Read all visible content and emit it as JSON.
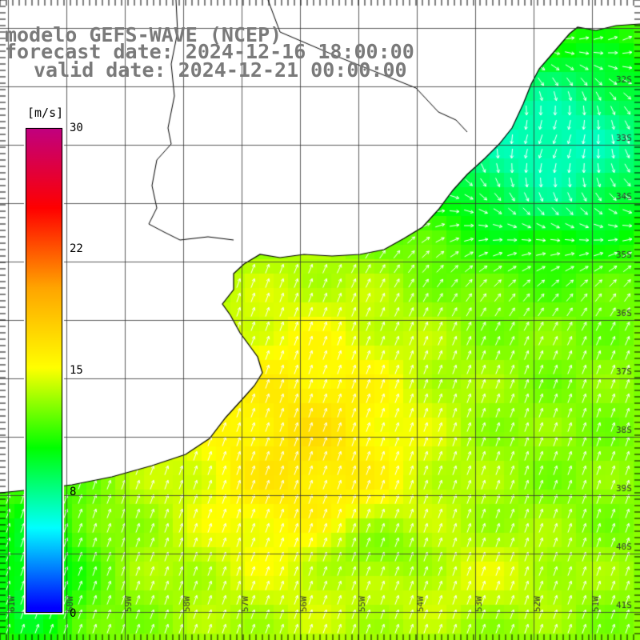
{
  "title": {
    "line1": "modelo GEFS-WAVE (NCEP)",
    "line2": "forecast date: 2024-12-16 18:00:00",
    "line3": "valid date: 2024-12-21 00:00:00"
  },
  "colorbar": {
    "unit": "[m/s]",
    "min": 0,
    "max": 30,
    "ticks": [
      "30",
      "22",
      "15",
      "8",
      "0"
    ],
    "colors": [
      "#0000ff",
      "#00ffff",
      "#00ff00",
      "#ffff00",
      "#ffa500",
      "#ff0000",
      "#c00080"
    ]
  },
  "map": {
    "lon_range": [
      -62,
      -51
    ],
    "lat_range": [
      -41.2,
      -31.2
    ],
    "lat_labels": [
      "32S",
      "33S",
      "34S",
      "35S",
      "36S",
      "37S",
      "38S",
      "39S",
      "40S",
      "41S"
    ],
    "lon_labels": [
      "61W",
      "60W",
      "59W",
      "58W",
      "57W",
      "56W",
      "55W",
      "54W",
      "53W",
      "52W",
      "51W"
    ],
    "grid_color": "#333333",
    "coast_color": "#000000",
    "vector_color": "#ffffff"
  }
}
